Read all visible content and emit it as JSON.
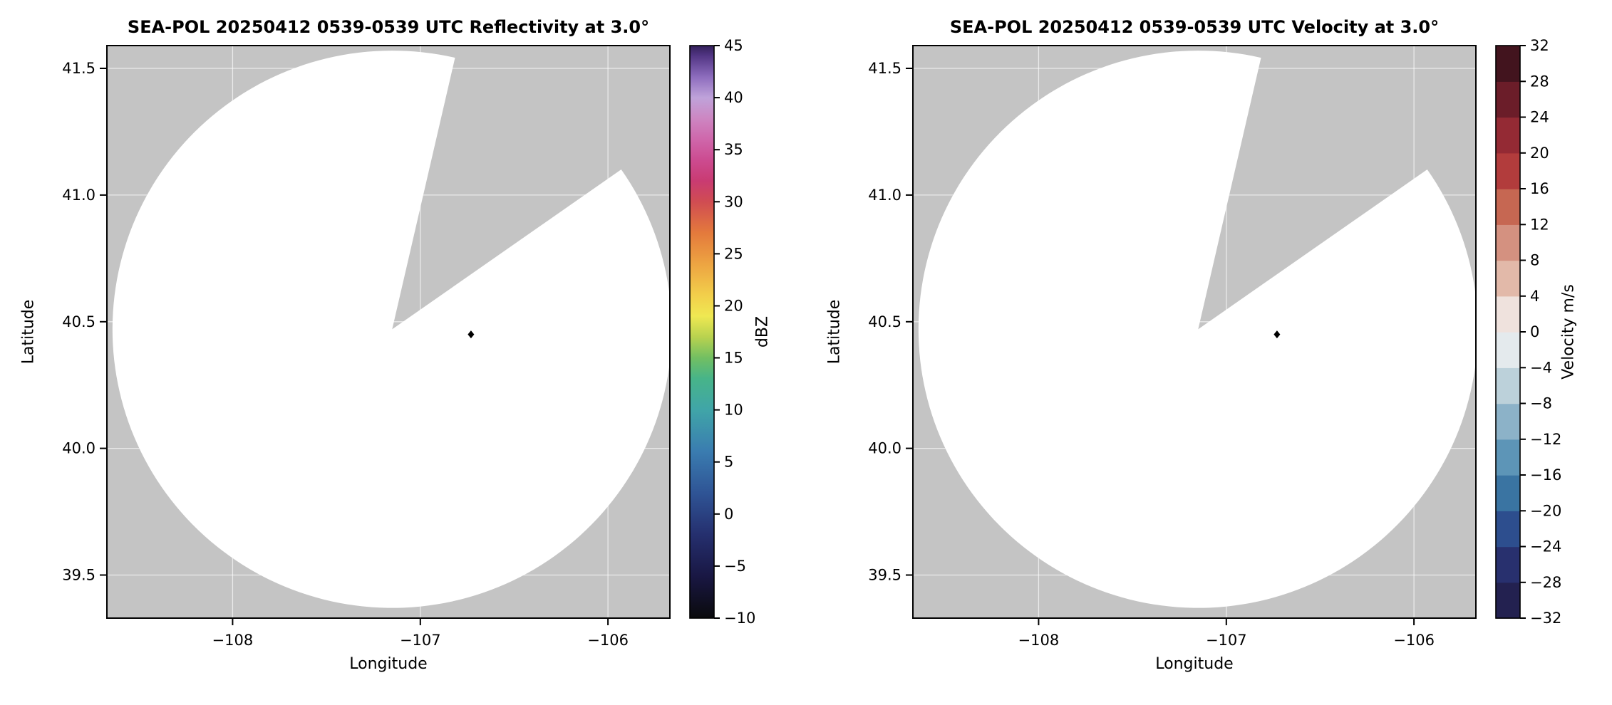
{
  "chart_data": [
    {
      "type": "heatmap",
      "title": "SEA-POL 20250412 0539-0539 UTC Reflectivity at 3.0°",
      "xlabel": "Longitude",
      "ylabel": "Latitude",
      "xlim": [
        -108.67,
        -105.67
      ],
      "ylim": [
        39.33,
        41.59
      ],
      "xtick_values": [
        -108,
        -107,
        -106
      ],
      "xtick_labels": [
        "−108",
        "−107",
        "−106"
      ],
      "ytick_values": [
        39.5,
        40.0,
        40.5,
        41.0,
        41.5
      ],
      "ytick_labels": [
        "39.5",
        "40.0",
        "40.5",
        "41.0",
        "41.5"
      ],
      "grid": true,
      "radar_coverage": {
        "center_lon": -107.15,
        "center_lat": 40.47,
        "radius_lon": 1.49,
        "radius_lat": 1.1,
        "blocked_sector_azimuth_deg": [
          13,
          55
        ],
        "outside_color": "#c4c4c4",
        "inside_color": "#ffffff"
      },
      "marker": {
        "lon": -106.73,
        "lat": 40.45,
        "shape": "diamond",
        "color": "#000000"
      },
      "colorbar": {
        "label": "dBZ",
        "style": "continuous",
        "vmin": -10,
        "vmax": 45,
        "tick_values": [
          -10,
          -5,
          0,
          5,
          10,
          15,
          20,
          25,
          30,
          35,
          40,
          45
        ],
        "tick_labels": [
          "−10",
          "−5",
          "0",
          "5",
          "10",
          "15",
          "20",
          "25",
          "30",
          "35",
          "40",
          "45"
        ],
        "gradient_stops": [
          [
            -10,
            "#0a0a0c"
          ],
          [
            -6,
            "#191743"
          ],
          [
            -2,
            "#252f6e"
          ],
          [
            2,
            "#2f5495"
          ],
          [
            6,
            "#3a7cb0"
          ],
          [
            10,
            "#40a5a8"
          ],
          [
            13,
            "#47b489"
          ],
          [
            15,
            "#72bf62"
          ],
          [
            17,
            "#b8d24f"
          ],
          [
            19,
            "#efe852"
          ],
          [
            21,
            "#f2cf4b"
          ],
          [
            24,
            "#eda442"
          ],
          [
            27,
            "#e47a3c"
          ],
          [
            30,
            "#d04c52"
          ],
          [
            32,
            "#c93b72"
          ],
          [
            34,
            "#cc4b90"
          ],
          [
            36,
            "#cf67ab"
          ],
          [
            38,
            "#cd86c2"
          ],
          [
            40,
            "#bfa3da"
          ],
          [
            42,
            "#8d6cbd"
          ],
          [
            44,
            "#533685"
          ],
          [
            45,
            "#33205a"
          ]
        ]
      }
    },
    {
      "type": "heatmap",
      "title": "SEA-POL 20250412 0539-0539 UTC Velocity at 3.0°",
      "xlabel": "Longitude",
      "ylabel": "Latitude",
      "xlim": [
        -108.67,
        -105.67
      ],
      "ylim": [
        39.33,
        41.59
      ],
      "xtick_values": [
        -108,
        -107,
        -106
      ],
      "xtick_labels": [
        "−108",
        "−107",
        "−106"
      ],
      "ytick_values": [
        39.5,
        40.0,
        40.5,
        41.0,
        41.5
      ],
      "ytick_labels": [
        "39.5",
        "40.0",
        "40.5",
        "41.0",
        "41.5"
      ],
      "grid": true,
      "radar_coverage": {
        "center_lon": -107.15,
        "center_lat": 40.47,
        "radius_lon": 1.49,
        "radius_lat": 1.1,
        "blocked_sector_azimuth_deg": [
          13,
          55
        ],
        "outside_color": "#c4c4c4",
        "inside_color": "#ffffff"
      },
      "marker": {
        "lon": -106.73,
        "lat": 40.45,
        "shape": "diamond",
        "color": "#000000"
      },
      "colorbar": {
        "label": "Velocity m/s",
        "style": "discrete",
        "vmin": -32,
        "vmax": 32,
        "tick_values": [
          -32,
          -28,
          -24,
          -20,
          -16,
          -12,
          -8,
          -4,
          0,
          4,
          8,
          12,
          16,
          20,
          24,
          28,
          32
        ],
        "tick_labels": [
          "−32",
          "−28",
          "−24",
          "−20",
          "−16",
          "−12",
          "−8",
          "−4",
          "0",
          "4",
          "8",
          "12",
          "16",
          "20",
          "24",
          "28",
          "32"
        ],
        "segment_colors": [
          "#232150",
          "#28306e",
          "#2d4e8e",
          "#3a74a2",
          "#5d95b7",
          "#8cb2c8",
          "#bcd1da",
          "#e4eaed",
          "#efe2dd",
          "#e2b9a9",
          "#d49180",
          "#c66752",
          "#b23c3c",
          "#942a34",
          "#6b1d29",
          "#42141e"
        ]
      }
    }
  ]
}
